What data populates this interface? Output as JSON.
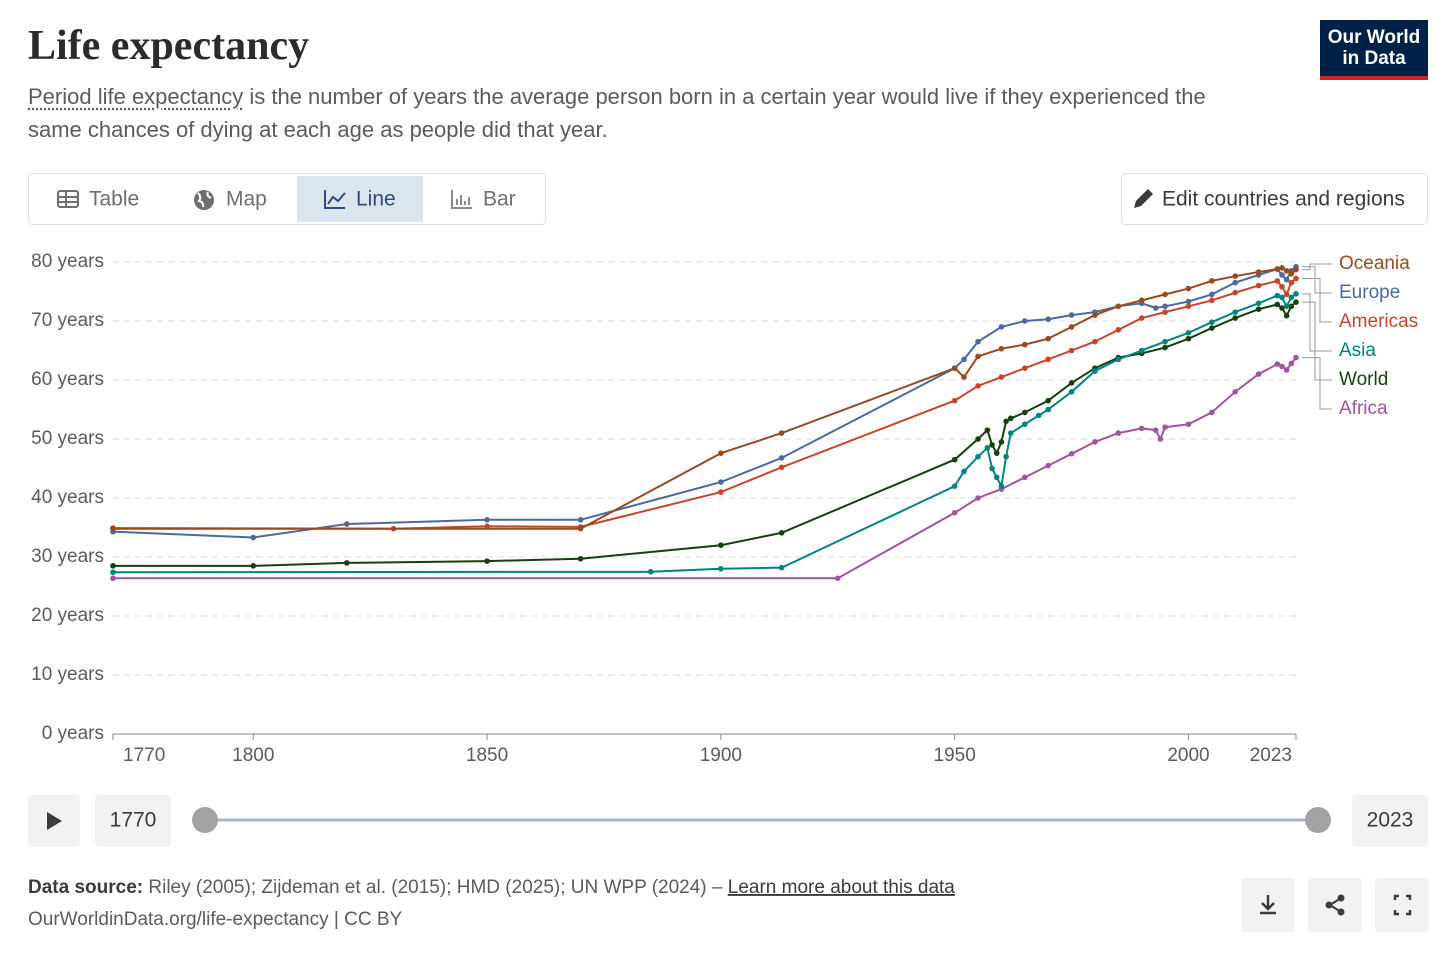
{
  "header": {
    "title": "Life expectancy",
    "subtitle_link": "Period life expectancy",
    "subtitle_rest": "is the number of years the average person born in a certain year would live if they experienced the same chances of dying at each age as people did that year.",
    "logo_line1": "Our World",
    "logo_line2": "in Data"
  },
  "tabs": [
    "Table",
    "Map",
    "Line",
    "Bar"
  ],
  "edit_button": "Edit countries and regions",
  "chart_data": {
    "type": "line",
    "xlim": [
      1770,
      2023
    ],
    "xticks": [
      1770,
      1800,
      1850,
      1900,
      1950,
      2000,
      2023
    ],
    "ylim": [
      0,
      80
    ],
    "yticks": [
      {
        "value": 0,
        "label": "0 years"
      },
      {
        "value": 10,
        "label": "10 years"
      },
      {
        "value": 20,
        "label": "20 years"
      },
      {
        "value": 30,
        "label": "30 years"
      },
      {
        "value": 40,
        "label": "40 years"
      },
      {
        "value": 50,
        "label": "50 years"
      },
      {
        "value": 60,
        "label": "60 years"
      },
      {
        "value": 70,
        "label": "70 years"
      },
      {
        "value": 80,
        "label": "80 years"
      }
    ],
    "grid": true,
    "series": [
      {
        "name": "Oceania",
        "color": "#9a4a20",
        "x": [
          1770,
          1870,
          1900,
          1913,
          1950,
          1952,
          1955,
          1960,
          1965,
          1970,
          1975,
          1980,
          1985,
          1990,
          1995,
          2000,
          2005,
          2010,
          2015,
          2019,
          2020,
          2021,
          2022,
          2023
        ],
        "values": [
          34.8,
          34.8,
          47.6,
          51,
          62,
          60.5,
          64,
          65.3,
          66,
          67,
          69,
          71,
          72.5,
          73.5,
          74.5,
          75.5,
          76.8,
          77.6,
          78.3,
          78.8,
          79,
          78.5,
          78,
          78.7
        ]
      },
      {
        "name": "Europe",
        "color": "#4c6a9c",
        "x": [
          1770,
          1800,
          1820,
          1850,
          1870,
          1900,
          1913,
          1950,
          1952,
          1955,
          1960,
          1965,
          1970,
          1975,
          1980,
          1985,
          1990,
          1993,
          1995,
          2000,
          2005,
          2010,
          2015,
          2019,
          2020,
          2021,
          2022,
          2023
        ],
        "values": [
          34.3,
          33.3,
          35.6,
          36.3,
          36.3,
          42.7,
          46.8,
          62,
          63.5,
          66.5,
          69,
          70,
          70.3,
          71,
          71.5,
          72.5,
          73,
          72.2,
          72.5,
          73.3,
          74.5,
          76.5,
          77.8,
          78.8,
          77.8,
          77,
          78.5,
          79.2
        ]
      },
      {
        "name": "Americas",
        "color": "#c8452c",
        "x": [
          1770,
          1830,
          1850,
          1870,
          1900,
          1913,
          1950,
          1955,
          1960,
          1965,
          1970,
          1975,
          1980,
          1985,
          1990,
          1995,
          2000,
          2005,
          2010,
          2015,
          2019,
          2020,
          2021,
          2022,
          2023
        ],
        "values": [
          34.9,
          34.8,
          35.2,
          35.1,
          41,
          45.2,
          56.5,
          59,
          60.5,
          62,
          63.5,
          65,
          66.5,
          68.5,
          70.5,
          71.5,
          72.5,
          73.5,
          74.8,
          76,
          76.8,
          75.8,
          74.5,
          76.5,
          77.2
        ]
      },
      {
        "name": "Asia",
        "color": "#00847e",
        "x": [
          1770,
          1885,
          1900,
          1913,
          1950,
          1952,
          1955,
          1957,
          1958,
          1959,
          1960,
          1961,
          1962,
          1965,
          1968,
          1970,
          1975,
          1980,
          1985,
          1990,
          1995,
          2000,
          2005,
          2010,
          2015,
          2019,
          2020,
          2021,
          2022,
          2023
        ],
        "values": [
          27.4,
          27.5,
          28,
          28.2,
          42,
          44.5,
          47,
          48.5,
          45,
          43.5,
          42,
          47,
          51,
          52.5,
          54,
          55,
          58,
          61.5,
          63.5,
          65,
          66.5,
          68,
          69.8,
          71.5,
          73,
          74.3,
          74,
          72.5,
          74,
          74.6
        ]
      },
      {
        "name": "World",
        "color": "#173f12",
        "x": [
          1770,
          1800,
          1820,
          1850,
          1870,
          1900,
          1913,
          1950,
          1955,
          1957,
          1958,
          1959,
          1960,
          1961,
          1962,
          1965,
          1970,
          1975,
          1980,
          1985,
          1990,
          1995,
          2000,
          2005,
          2010,
          2015,
          2019,
          2020,
          2021,
          2022,
          2023
        ],
        "values": [
          28.5,
          28.5,
          29,
          29.3,
          29.7,
          32,
          34.1,
          46.5,
          50,
          51.5,
          49,
          47.6,
          49.5,
          53,
          53.5,
          54.5,
          56.5,
          59.5,
          62,
          63.8,
          64.5,
          65.5,
          67,
          68.8,
          70.5,
          72,
          72.8,
          72.2,
          70.9,
          72.5,
          73.2
        ]
      },
      {
        "name": "Africa",
        "color": "#a2559c",
        "x": [
          1770,
          1925,
          1950,
          1955,
          1960,
          1965,
          1970,
          1975,
          1980,
          1985,
          1990,
          1993,
          1994,
          1995,
          2000,
          2005,
          2010,
          2015,
          2019,
          2020,
          2021,
          2022,
          2023
        ],
        "values": [
          26.4,
          26.4,
          37.5,
          40,
          41.5,
          43.5,
          45.5,
          47.5,
          49.5,
          51,
          51.8,
          51.5,
          50,
          52,
          52.5,
          54.5,
          58,
          61,
          62.7,
          62.3,
          61.7,
          62.8,
          63.8
        ]
      }
    ]
  },
  "timeline": {
    "start": 1770,
    "end": 2023
  },
  "footer": {
    "source_label": "Data source:",
    "source_text": "Riley (2005); Zijdeman et al. (2015); HMD (2025); UN WPP (2024) –",
    "learn_more": "Learn more about this data",
    "url": "OurWorldinData.org/life-expectancy | CC BY"
  }
}
